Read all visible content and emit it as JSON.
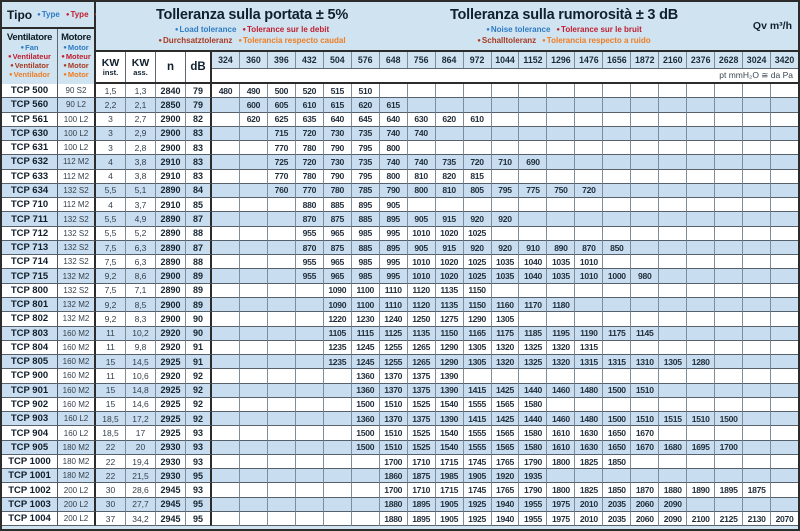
{
  "colors": {
    "blue": "#2e7bc4",
    "red": "#c01f2f",
    "brick": "#a83b22",
    "orange": "#ee7d23"
  },
  "header": {
    "tipo": {
      "label": "Tipo",
      "items": [
        {
          "text": "Type",
          "color": "blue"
        },
        {
          "text": "Type",
          "color": "red"
        },
        {
          "text": "Typ",
          "color": "brick"
        }
      ]
    },
    "ventilatore": {
      "label": "Ventilatore",
      "items": [
        {
          "text": "Fan",
          "color": "blue"
        },
        {
          "text": "Ventilateur",
          "color": "red"
        },
        {
          "text": "Ventilator",
          "color": "brick"
        },
        {
          "text": "Ventilador",
          "color": "orange"
        }
      ]
    },
    "motore": {
      "label": "Motore",
      "items": [
        {
          "text": "Motor",
          "color": "blue"
        },
        {
          "text": "Moteur",
          "color": "red"
        },
        {
          "text": "Motor",
          "color": "brick"
        },
        {
          "text": "Motor",
          "color": "orange"
        }
      ]
    },
    "tolerance_flow": {
      "title": "Tolleranza sulla portata  ± 5%",
      "line1": [
        {
          "text": "Load tolerance",
          "color": "blue"
        },
        {
          "text": "Tolerance sur le debit",
          "color": "red"
        }
      ],
      "line2": [
        {
          "text": "Durchsatztoleranz",
          "color": "brick"
        },
        {
          "text": "Tolerancia respecto caudal",
          "color": "orange"
        }
      ]
    },
    "tolerance_noise": {
      "title": "Tolleranza sulla rumorosità  ± 3 dB",
      "line1": [
        {
          "text": "Noise tolerance",
          "color": "blue"
        },
        {
          "text": "Tolerance sur le bruit",
          "color": "red"
        }
      ],
      "line2": [
        {
          "text": "Schalltoleranz",
          "color": "brick"
        },
        {
          "text": "Tolerancia respecto a ruido",
          "color": "orange"
        }
      ]
    },
    "qv_label": "Qv m³/h",
    "pressure_note": "pt mmH₂O ≅ da Pa",
    "columns": {
      "kw_inst_top": "KW",
      "kw_inst_bottom": "inst.",
      "kw_ass_top": "KW",
      "kw_ass_bottom": "ass.",
      "n": "n",
      "db": "dB"
    },
    "flow_values": [
      "324",
      "360",
      "396",
      "432",
      "504",
      "576",
      "648",
      "756",
      "864",
      "972",
      "1044",
      "1152",
      "1296",
      "1476",
      "1656",
      "1872",
      "2160",
      "2376",
      "2628",
      "3024",
      "3420"
    ]
  },
  "rows": [
    {
      "model": "TCP 500",
      "motor": "90 S2",
      "kw_inst": "1,5",
      "kw_ass": "1,3",
      "n": "2840",
      "db": "79",
      "data": [
        480,
        490,
        500,
        520,
        515,
        510,
        null,
        null,
        null,
        null,
        null,
        null,
        null,
        null,
        null,
        null,
        null,
        null,
        null,
        null,
        null
      ]
    },
    {
      "model": "TCP 560",
      "motor": "90 L2",
      "kw_inst": "2,2",
      "kw_ass": "2,1",
      "n": "2850",
      "db": "79",
      "data": [
        null,
        600,
        605,
        610,
        615,
        620,
        615,
        null,
        null,
        null,
        null,
        null,
        null,
        null,
        null,
        null,
        null,
        null,
        null,
        null,
        null
      ]
    },
    {
      "model": "TCP 561",
      "motor": "100 L2",
      "kw_inst": "3",
      "kw_ass": "2,7",
      "n": "2900",
      "db": "82",
      "data": [
        null,
        620,
        625,
        635,
        640,
        645,
        640,
        630,
        620,
        610,
        null,
        null,
        null,
        null,
        null,
        null,
        null,
        null,
        null,
        null,
        null
      ]
    },
    {
      "model": "TCP 630",
      "motor": "100 L2",
      "kw_inst": "3",
      "kw_ass": "2,9",
      "n": "2900",
      "db": "83",
      "data": [
        null,
        null,
        715,
        720,
        730,
        735,
        740,
        740,
        null,
        null,
        null,
        null,
        null,
        null,
        null,
        null,
        null,
        null,
        null,
        null,
        null
      ]
    },
    {
      "model": "TCP 631",
      "motor": "100 L2",
      "kw_inst": "3",
      "kw_ass": "2,8",
      "n": "2900",
      "db": "83",
      "data": [
        null,
        null,
        770,
        780,
        790,
        795,
        800,
        null,
        null,
        null,
        null,
        null,
        null,
        null,
        null,
        null,
        null,
        null,
        null,
        null,
        null
      ]
    },
    {
      "model": "TCP 632",
      "motor": "112 M2",
      "kw_inst": "4",
      "kw_ass": "3,8",
      "n": "2910",
      "db": "83",
      "data": [
        null,
        null,
        725,
        720,
        730,
        735,
        740,
        740,
        735,
        720,
        710,
        690,
        null,
        null,
        null,
        null,
        null,
        null,
        null,
        null,
        null
      ]
    },
    {
      "model": "TCP 633",
      "motor": "112 M2",
      "kw_inst": "4",
      "kw_ass": "3,8",
      "n": "2910",
      "db": "83",
      "data": [
        null,
        null,
        770,
        780,
        790,
        795,
        800,
        810,
        820,
        815,
        null,
        null,
        null,
        null,
        null,
        null,
        null,
        null,
        null,
        null,
        null
      ]
    },
    {
      "model": "TCP 634",
      "motor": "132 S2",
      "kw_inst": "5,5",
      "kw_ass": "5,1",
      "n": "2890",
      "db": "84",
      "data": [
        null,
        null,
        760,
        770,
        780,
        785,
        790,
        800,
        810,
        805,
        795,
        775,
        750,
        720,
        null,
        null,
        null,
        null,
        null,
        null,
        null
      ]
    },
    {
      "model": "TCP 710",
      "motor": "112 M2",
      "kw_inst": "4",
      "kw_ass": "3,7",
      "n": "2910",
      "db": "85",
      "data": [
        null,
        null,
        null,
        880,
        885,
        895,
        905,
        null,
        null,
        null,
        null,
        null,
        null,
        null,
        null,
        null,
        null,
        null,
        null,
        null,
        null
      ]
    },
    {
      "model": "TCP 711",
      "motor": "132 S2",
      "kw_inst": "5,5",
      "kw_ass": "4,9",
      "n": "2890",
      "db": "87",
      "data": [
        null,
        null,
        null,
        870,
        875,
        885,
        895,
        905,
        915,
        920,
        920,
        null,
        null,
        null,
        null,
        null,
        null,
        null,
        null,
        null,
        null
      ]
    },
    {
      "model": "TCP 712",
      "motor": "132 S2",
      "kw_inst": "5,5",
      "kw_ass": "5,2",
      "n": "2890",
      "db": "88",
      "data": [
        null,
        null,
        null,
        955,
        965,
        985,
        995,
        1010,
        1020,
        1025,
        null,
        null,
        null,
        null,
        null,
        null,
        null,
        null,
        null,
        null,
        null
      ]
    },
    {
      "model": "TCP 713",
      "motor": "132 S2",
      "kw_inst": "7,5",
      "kw_ass": "6,3",
      "n": "2890",
      "db": "87",
      "data": [
        null,
        null,
        null,
        870,
        875,
        885,
        895,
        905,
        915,
        920,
        920,
        910,
        890,
        870,
        850,
        null,
        null,
        null,
        null,
        null,
        null
      ]
    },
    {
      "model": "TCP 714",
      "motor": "132 S2",
      "kw_inst": "7,5",
      "kw_ass": "6,3",
      "n": "2890",
      "db": "88",
      "data": [
        null,
        null,
        null,
        955,
        965,
        985,
        995,
        1010,
        1020,
        1025,
        1035,
        1040,
        1035,
        1010,
        null,
        null,
        null,
        null,
        null,
        null,
        null
      ]
    },
    {
      "model": "TCP 715",
      "motor": "132 M2",
      "kw_inst": "9,2",
      "kw_ass": "8,6",
      "n": "2900",
      "db": "89",
      "data": [
        null,
        null,
        null,
        955,
        965,
        985,
        995,
        1010,
        1020,
        1025,
        1035,
        1040,
        1035,
        1010,
        1000,
        980,
        null,
        null,
        null,
        null,
        null
      ]
    },
    {
      "model": "TCP 800",
      "motor": "132 S2",
      "kw_inst": "7,5",
      "kw_ass": "7,1",
      "n": "2890",
      "db": "89",
      "data": [
        null,
        null,
        null,
        null,
        1090,
        1100,
        1110,
        1120,
        1135,
        1150,
        null,
        null,
        null,
        null,
        null,
        null,
        null,
        null,
        null,
        null,
        null
      ]
    },
    {
      "model": "TCP 801",
      "motor": "132 M2",
      "kw_inst": "9,2",
      "kw_ass": "8,5",
      "n": "2900",
      "db": "89",
      "data": [
        null,
        null,
        null,
        null,
        1090,
        1100,
        1110,
        1120,
        1135,
        1150,
        1160,
        1170,
        1180,
        null,
        null,
        null,
        null,
        null,
        null,
        null,
        null
      ]
    },
    {
      "model": "TCP 802",
      "motor": "132 M2",
      "kw_inst": "9,2",
      "kw_ass": "8,3",
      "n": "2900",
      "db": "90",
      "data": [
        null,
        null,
        null,
        null,
        1220,
        1230,
        1240,
        1250,
        1275,
        1290,
        1305,
        null,
        null,
        null,
        null,
        null,
        null,
        null,
        null,
        null,
        null
      ]
    },
    {
      "model": "TCP 803",
      "motor": "160 M2",
      "kw_inst": "11",
      "kw_ass": "10,2",
      "n": "2920",
      "db": "90",
      "data": [
        null,
        null,
        null,
        null,
        1105,
        1115,
        1125,
        1135,
        1150,
        1165,
        1175,
        1185,
        1195,
        1190,
        1175,
        1145,
        null,
        null,
        null,
        null,
        null
      ]
    },
    {
      "model": "TCP 804",
      "motor": "160 M2",
      "kw_inst": "11",
      "kw_ass": "9,8",
      "n": "2920",
      "db": "91",
      "data": [
        null,
        null,
        null,
        null,
        1235,
        1245,
        1255,
        1265,
        1290,
        1305,
        1320,
        1325,
        1320,
        1315,
        null,
        null,
        null,
        null,
        null,
        null,
        null
      ]
    },
    {
      "model": "TCP 805",
      "motor": "160 M2",
      "kw_inst": "15",
      "kw_ass": "14,5",
      "n": "2925",
      "db": "91",
      "data": [
        null,
        null,
        null,
        null,
        1235,
        1245,
        1255,
        1265,
        1290,
        1305,
        1320,
        1325,
        1320,
        1315,
        1315,
        1310,
        1305,
        1280,
        null,
        null,
        null
      ]
    },
    {
      "model": "TCP 900",
      "motor": "160 M2",
      "kw_inst": "11",
      "kw_ass": "10,6",
      "n": "2920",
      "db": "92",
      "data": [
        null,
        null,
        null,
        null,
        null,
        1360,
        1370,
        1375,
        1390,
        null,
        null,
        null,
        null,
        null,
        null,
        null,
        null,
        null,
        null,
        null,
        null
      ]
    },
    {
      "model": "TCP 901",
      "motor": "160 M2",
      "kw_inst": "15",
      "kw_ass": "14,8",
      "n": "2925",
      "db": "92",
      "data": [
        null,
        null,
        null,
        null,
        null,
        1360,
        1370,
        1375,
        1390,
        1415,
        1425,
        1440,
        1460,
        1480,
        1500,
        1510,
        null,
        null,
        null,
        null,
        null
      ]
    },
    {
      "model": "TCP 902",
      "motor": "160 M2",
      "kw_inst": "15",
      "kw_ass": "14,6",
      "n": "2925",
      "db": "92",
      "data": [
        null,
        null,
        null,
        null,
        null,
        1500,
        1510,
        1525,
        1540,
        1555,
        1565,
        1580,
        null,
        null,
        null,
        null,
        null,
        null,
        null,
        null,
        null
      ]
    },
    {
      "model": "TCP 903",
      "motor": "160 L2",
      "kw_inst": "18,5",
      "kw_ass": "17,2",
      "n": "2925",
      "db": "92",
      "data": [
        null,
        null,
        null,
        null,
        null,
        1360,
        1370,
        1375,
        1390,
        1415,
        1425,
        1440,
        1460,
        1480,
        1500,
        1510,
        1515,
        1510,
        1500,
        null,
        null
      ]
    },
    {
      "model": "TCP 904",
      "motor": "160 L2",
      "kw_inst": "18,5",
      "kw_ass": "17",
      "n": "2925",
      "db": "93",
      "data": [
        null,
        null,
        null,
        null,
        null,
        1500,
        1510,
        1525,
        1540,
        1555,
        1565,
        1580,
        1610,
        1630,
        1650,
        1670,
        null,
        null,
        null,
        null,
        null
      ]
    },
    {
      "model": "TCP 905",
      "motor": "180 M2",
      "kw_inst": "22",
      "kw_ass": "20",
      "n": "2930",
      "db": "93",
      "data": [
        null,
        null,
        null,
        null,
        null,
        1500,
        1510,
        1525,
        1540,
        1555,
        1565,
        1580,
        1610,
        1630,
        1650,
        1670,
        1680,
        1695,
        1700,
        null,
        null
      ]
    },
    {
      "model": "TCP 1000",
      "motor": "180 M2",
      "kw_inst": "22",
      "kw_ass": "19,4",
      "n": "2930",
      "db": "93",
      "data": [
        null,
        null,
        null,
        null,
        null,
        null,
        1700,
        1710,
        1715,
        1745,
        1765,
        1790,
        1800,
        1825,
        1850,
        null,
        null,
        null,
        null,
        null,
        null
      ]
    },
    {
      "model": "TCP 1001",
      "motor": "180 M2",
      "kw_inst": "22",
      "kw_ass": "21,5",
      "n": "2930",
      "db": "95",
      "data": [
        null,
        null,
        null,
        null,
        null,
        null,
        1860,
        1875,
        1985,
        1905,
        1920,
        1935,
        null,
        null,
        null,
        null,
        null,
        null,
        null,
        null,
        null
      ]
    },
    {
      "model": "TCP 1002",
      "motor": "200 L2",
      "kw_inst": "30",
      "kw_ass": "28,6",
      "n": "2945",
      "db": "93",
      "data": [
        null,
        null,
        null,
        null,
        null,
        null,
        1700,
        1710,
        1715,
        1745,
        1765,
        1790,
        1800,
        1825,
        1850,
        1870,
        1880,
        1890,
        1895,
        1875,
        null
      ]
    },
    {
      "model": "TCP 1003",
      "motor": "200 L2",
      "kw_inst": "30",
      "kw_ass": "27,7",
      "n": "2945",
      "db": "95",
      "data": [
        null,
        null,
        null,
        null,
        null,
        null,
        1880,
        1895,
        1905,
        1925,
        1940,
        1955,
        1975,
        2010,
        2035,
        2060,
        2090,
        null,
        null,
        null,
        null
      ]
    },
    {
      "model": "TCP 1004",
      "motor": "200 L2",
      "kw_inst": "37",
      "kw_ass": "34,2",
      "n": "2945",
      "db": "95",
      "data": [
        null,
        null,
        null,
        null,
        null,
        null,
        1880,
        1895,
        1905,
        1925,
        1940,
        1955,
        1975,
        2010,
        2035,
        2060,
        2090,
        2100,
        2125,
        2130,
        2070
      ]
    }
  ]
}
